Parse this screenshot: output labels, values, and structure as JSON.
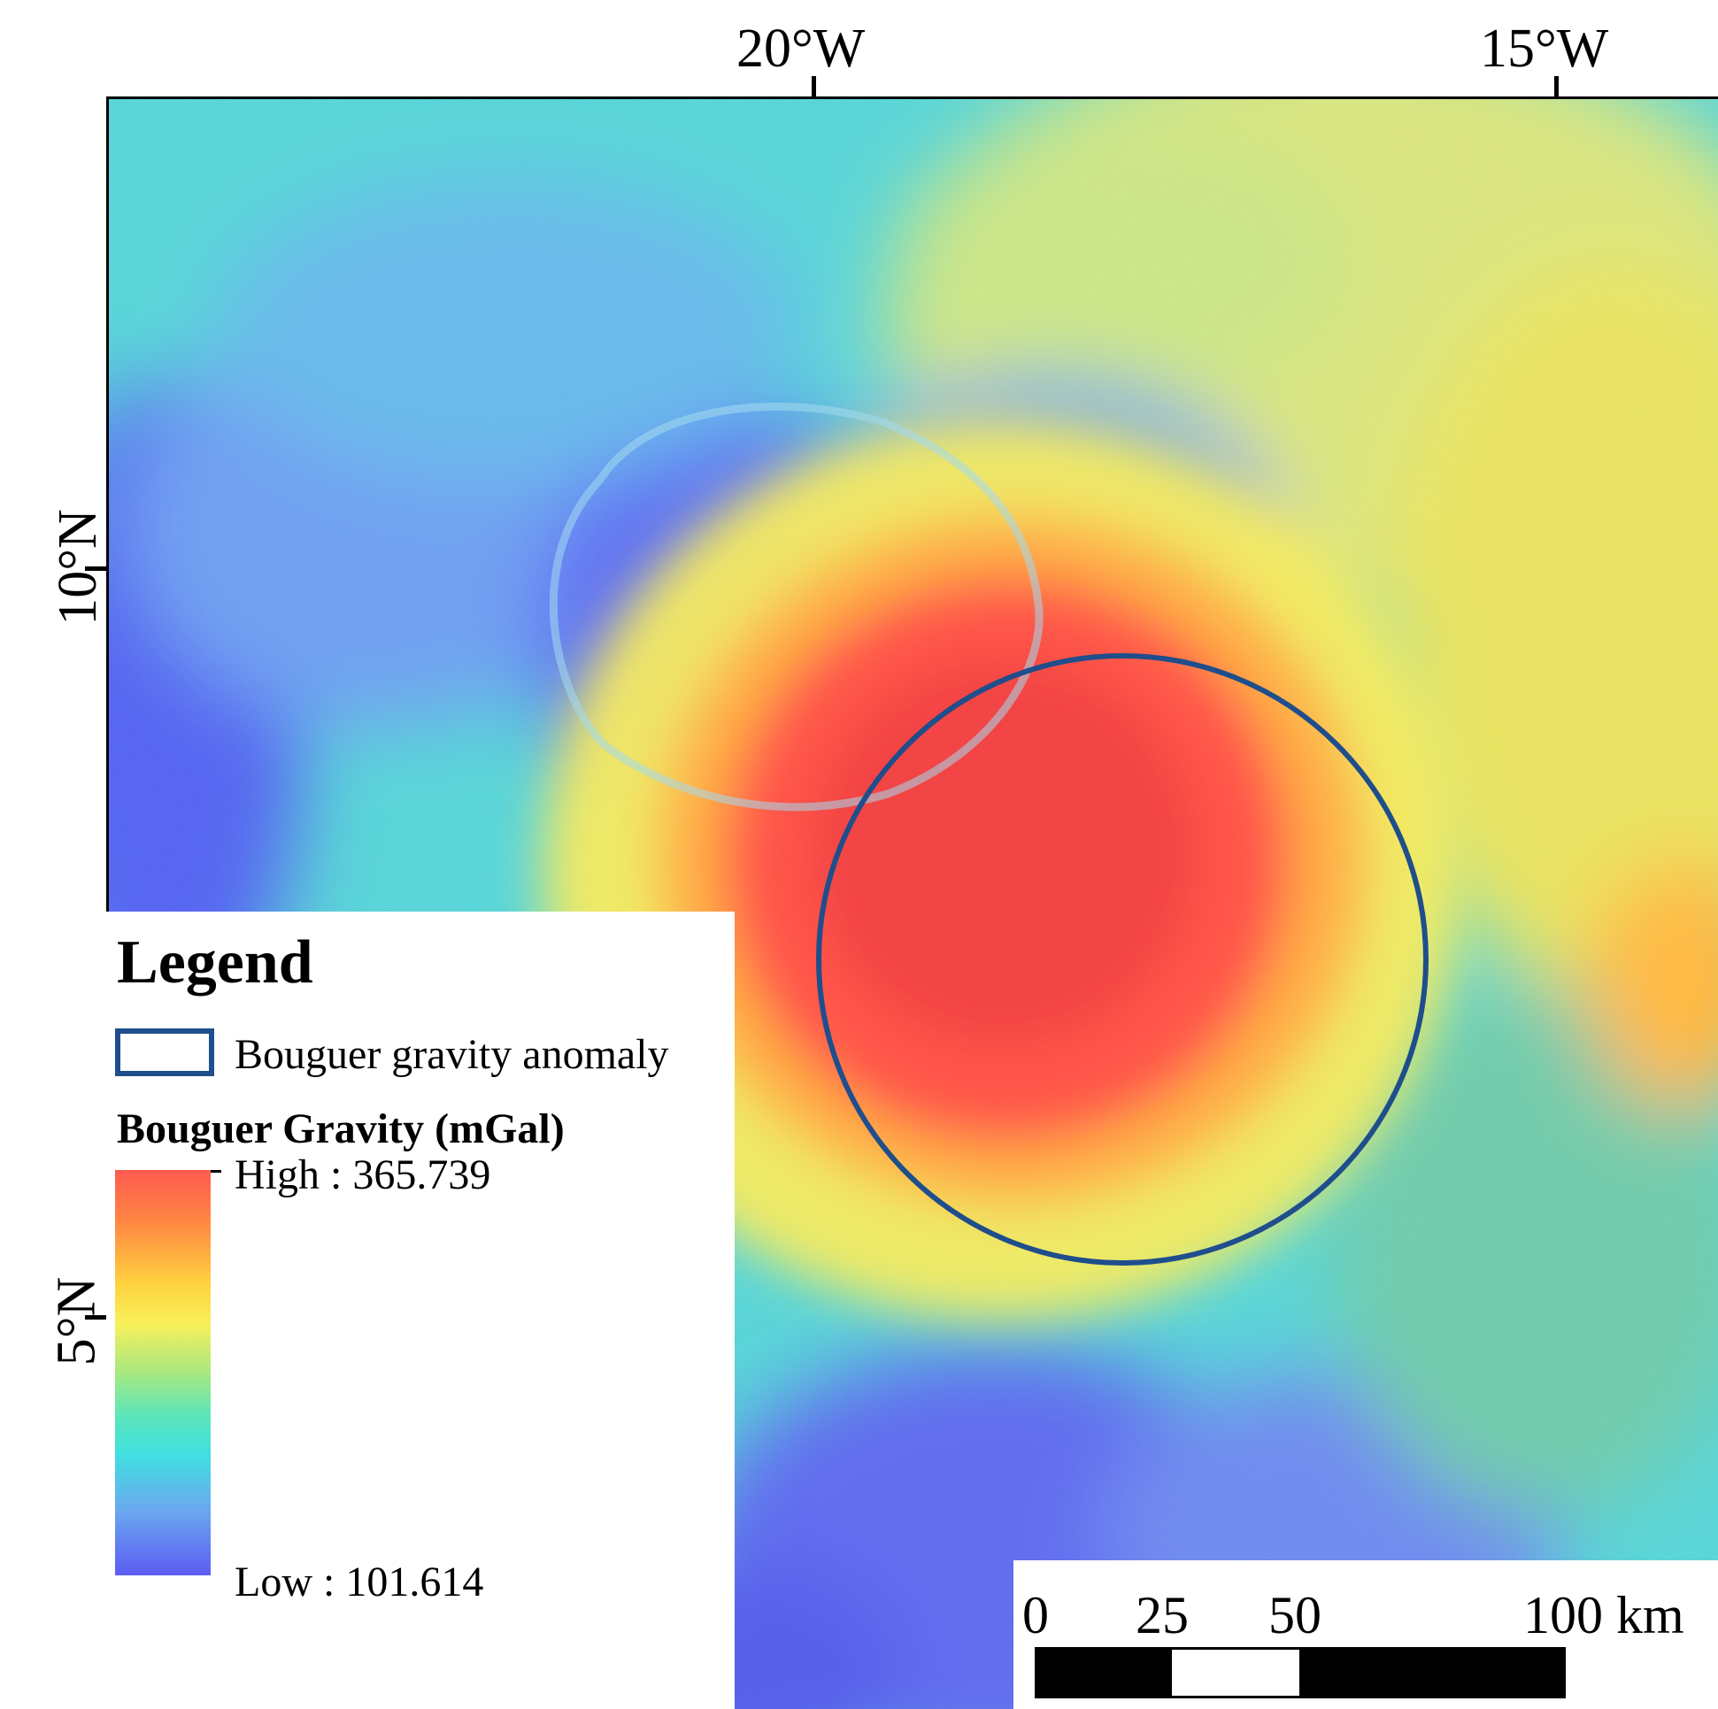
{
  "graticule": {
    "top_labels": [
      "20°W",
      "15°W"
    ],
    "left_labels": [
      "10°N",
      "5°N"
    ]
  },
  "map": {
    "features": [
      {
        "type": "crater-rim",
        "name": "crater"
      },
      {
        "type": "circle-outline",
        "name": "bouguer-anomaly-circle",
        "stroke": "#1f4e8c"
      }
    ],
    "colors": {
      "high": "#ff4a40",
      "mid": "#f5e855",
      "low": "#5a5af0",
      "background": "#52d8d6"
    }
  },
  "legend": {
    "title": "Legend",
    "items": [
      {
        "label": "Bouguer gravity anomaly",
        "swatch_color": "#1f4e8c"
      }
    ],
    "ramp": {
      "title": "Bouguer Gravity (mGal)",
      "high_label": "High : 365.739",
      "low_label": "Low : 101.614",
      "high_value": 365.739,
      "low_value": 101.614
    }
  },
  "scalebar": {
    "labels": [
      "0",
      "25",
      "50",
      "100 km"
    ],
    "unit": "km",
    "stops": [
      0,
      25,
      50,
      100
    ]
  }
}
